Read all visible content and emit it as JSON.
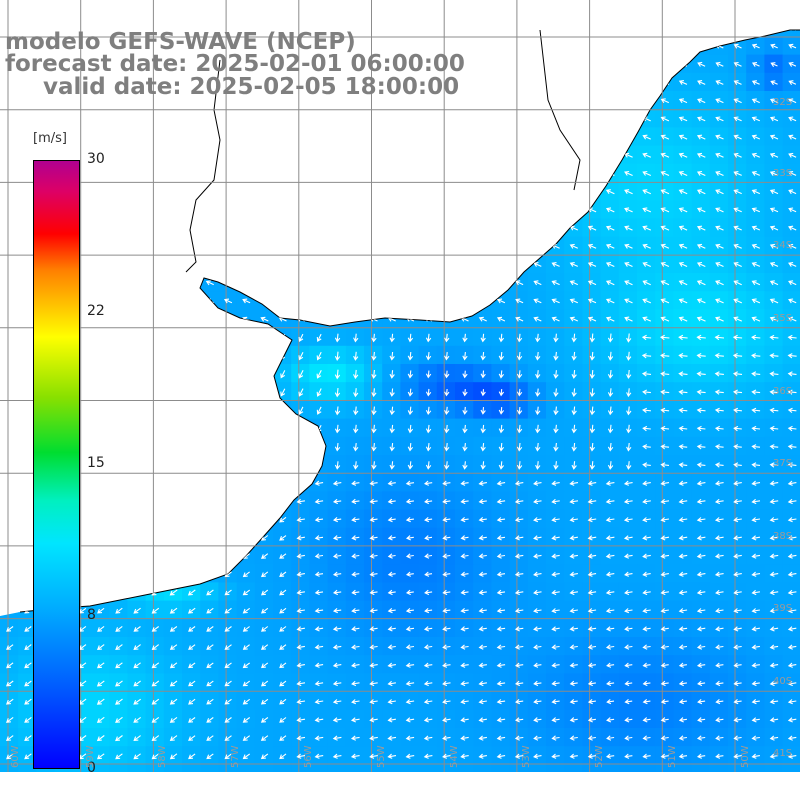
{
  "title": {
    "line1": "modelo GEFS-WAVE (NCEP)",
    "line2": "forecast date: 2025-02-01 06:00:00",
    "line3": "valid date: 2025-02-05 18:00:00"
  },
  "colorbar": {
    "unit": "[m/s]",
    "ticks": [
      "30",
      "22",
      "15",
      "8",
      "0"
    ],
    "range": [
      0,
      30
    ],
    "colors": [
      "#0000ff",
      "#00aaff",
      "#00e5ff",
      "#00dd30",
      "#ffff00",
      "#ff8000",
      "#ff0000",
      "#b00090"
    ]
  },
  "grid": {
    "lat_labels": [
      "32S",
      "33S",
      "34S",
      "35S",
      "36S",
      "37S",
      "38S",
      "39S",
      "40S",
      "41S"
    ],
    "lon_labels": [
      "60W",
      "59W",
      "58W",
      "57W",
      "56W",
      "55W",
      "54W",
      "53W",
      "52W",
      "51W",
      "50W"
    ]
  },
  "palette": {
    "land": "#ffffff",
    "coast": "#000000",
    "grid": "#8c8c8c",
    "arrow": "#ffffff",
    "text": "#7f7f7f"
  }
}
